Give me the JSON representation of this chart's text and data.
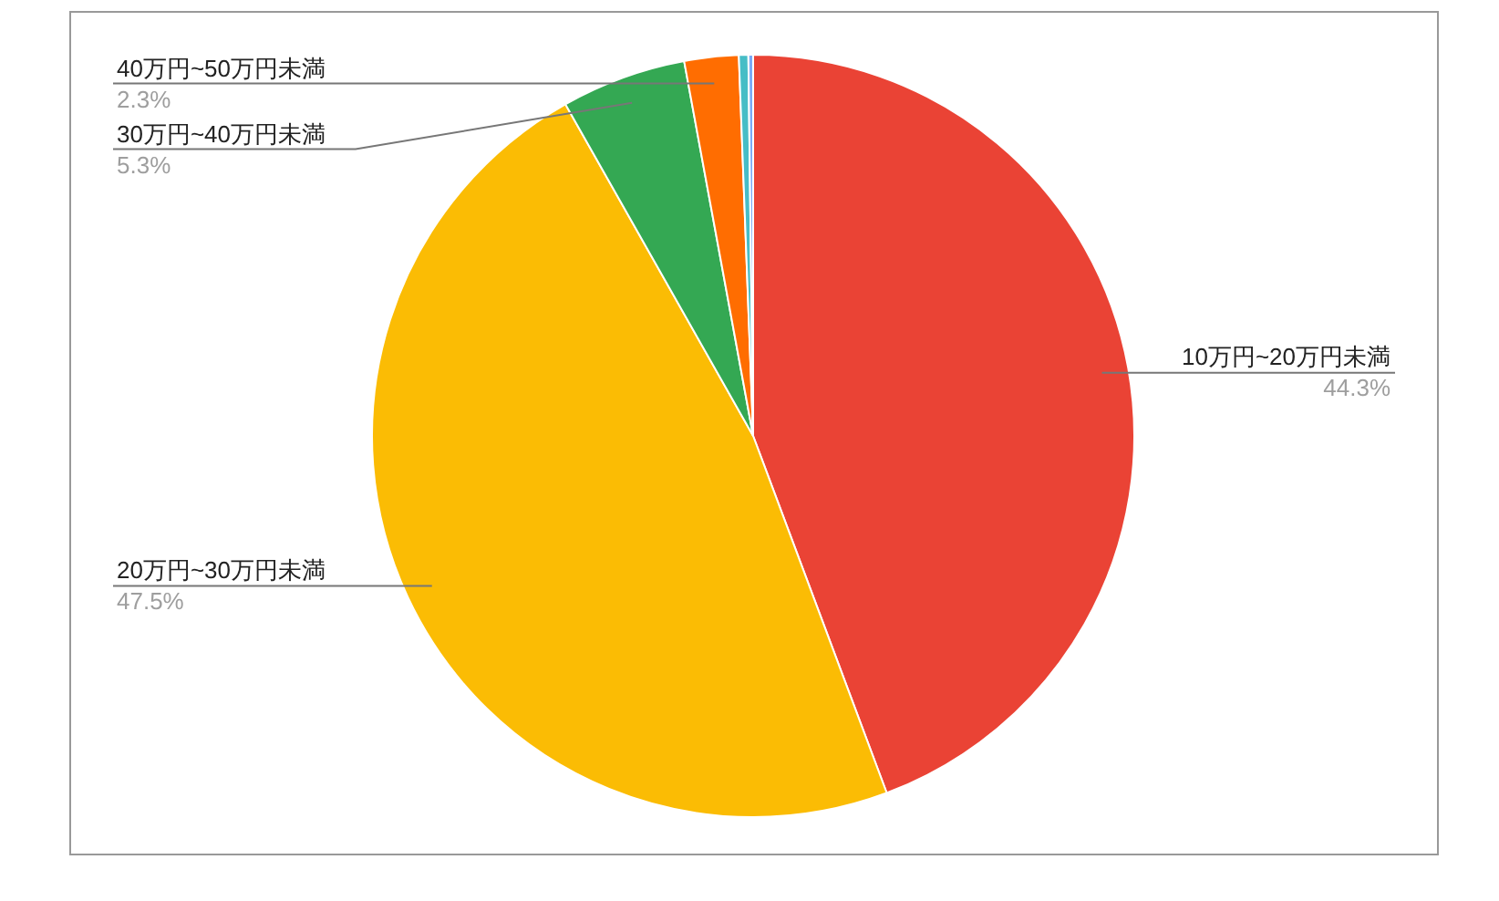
{
  "chart_data": {
    "type": "pie",
    "categories": [
      "10万円~20万円未満",
      "20万円~30万円未満",
      "30万円~40万円未満",
      "40万円~50万円未満",
      null,
      null
    ],
    "values": [
      44.3,
      47.5,
      5.3,
      2.3,
      0.4,
      0.2
    ],
    "value_labels": [
      "44.3%",
      "47.5%",
      "5.3%",
      "2.3%",
      null,
      null
    ],
    "colors": [
      "#ea4335",
      "#fbbc04",
      "#34a853",
      "#ff6d01",
      "#46bdc6",
      "#7baaf7"
    ],
    "legend": false
  }
}
